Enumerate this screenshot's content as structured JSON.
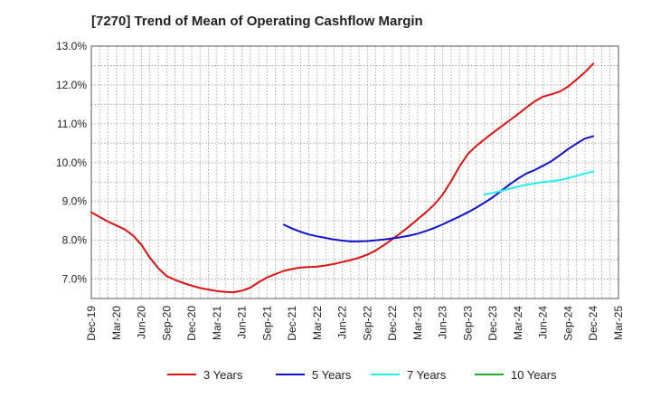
{
  "chart_data": {
    "type": "line",
    "title": "[7270]  Trend of Mean of Operating Cashflow Margin",
    "xlabel": "",
    "ylabel": "",
    "ylim": [
      6.5,
      13.0
    ],
    "y_ticks": [
      7.0,
      8.0,
      9.0,
      10.0,
      11.0,
      12.0,
      13.0
    ],
    "y_tick_labels": [
      "7.0%",
      "8.0%",
      "9.0%",
      "10.0%",
      "11.0%",
      "12.0%",
      "13.0%"
    ],
    "x_tick_labels": [
      "Dec-19",
      "Mar-20",
      "Jun-20",
      "Sep-20",
      "Dec-20",
      "Mar-21",
      "Jun-21",
      "Sep-21",
      "Dec-21",
      "Mar-22",
      "Jun-22",
      "Sep-22",
      "Dec-22",
      "Mar-23",
      "Jun-23",
      "Sep-23",
      "Dec-23",
      "Mar-24",
      "Jun-24",
      "Sep-24",
      "Dec-24",
      "Mar-25"
    ],
    "grid": true,
    "legend_position": "bottom",
    "series": [
      {
        "name": "3 Years",
        "color": "#dd1111",
        "x": [
          0,
          1,
          2,
          3,
          4,
          5,
          6,
          7,
          8,
          9,
          10,
          11,
          12,
          13,
          14,
          15,
          16,
          17,
          18,
          19,
          20,
          21,
          22,
          23,
          24,
          25,
          26,
          27,
          28,
          29,
          30,
          31,
          32,
          33,
          34,
          35,
          36,
          37,
          38,
          39,
          40,
          41,
          42,
          43,
          44,
          45,
          46,
          47,
          48,
          49,
          50,
          51,
          52,
          53,
          54,
          55,
          56,
          57,
          58,
          59,
          60
        ],
        "values": [
          8.72,
          8.6,
          8.48,
          8.38,
          8.28,
          8.12,
          7.88,
          7.55,
          7.28,
          7.08,
          6.98,
          6.9,
          6.83,
          6.77,
          6.73,
          6.69,
          6.67,
          6.66,
          6.7,
          6.78,
          6.92,
          7.04,
          7.13,
          7.21,
          7.26,
          7.3,
          7.31,
          7.32,
          7.35,
          7.39,
          7.44,
          7.49,
          7.55,
          7.63,
          7.74,
          7.88,
          8.03,
          8.19,
          8.36,
          8.54,
          8.72,
          8.92,
          9.18,
          9.52,
          9.9,
          10.22,
          10.43,
          10.6,
          10.77,
          10.93,
          11.09,
          11.25,
          11.42,
          11.58,
          11.7,
          11.76,
          11.83,
          11.96,
          12.14,
          12.33,
          12.55
        ]
      },
      {
        "name": "5 Years",
        "color": "#1010cc",
        "x": [
          23,
          24,
          25,
          26,
          27,
          28,
          29,
          30,
          31,
          32,
          33,
          34,
          35,
          36,
          37,
          38,
          39,
          40,
          41,
          42,
          43,
          44,
          45,
          46,
          47,
          48,
          49,
          50,
          51,
          52,
          53,
          54,
          55,
          56,
          57,
          58,
          59,
          60
        ],
        "values": [
          8.4,
          8.3,
          8.22,
          8.15,
          8.1,
          8.06,
          8.02,
          7.99,
          7.97,
          7.97,
          7.98,
          8.0,
          8.02,
          8.05,
          8.08,
          8.12,
          8.17,
          8.24,
          8.32,
          8.41,
          8.51,
          8.61,
          8.72,
          8.84,
          8.97,
          9.11,
          9.27,
          9.44,
          9.59,
          9.72,
          9.81,
          9.92,
          10.04,
          10.19,
          10.35,
          10.49,
          10.62,
          10.68
        ]
      },
      {
        "name": "7 Years",
        "color": "#22eeee",
        "x": [
          47,
          48,
          49,
          50,
          51,
          52,
          53,
          54,
          55,
          56,
          57,
          58,
          59,
          60
        ],
        "values": [
          9.18,
          9.22,
          9.27,
          9.33,
          9.38,
          9.43,
          9.46,
          9.5,
          9.52,
          9.55,
          9.6,
          9.66,
          9.72,
          9.77
        ]
      },
      {
        "name": "10 Years",
        "color": "#22aa22",
        "x": [],
        "values": []
      }
    ]
  }
}
